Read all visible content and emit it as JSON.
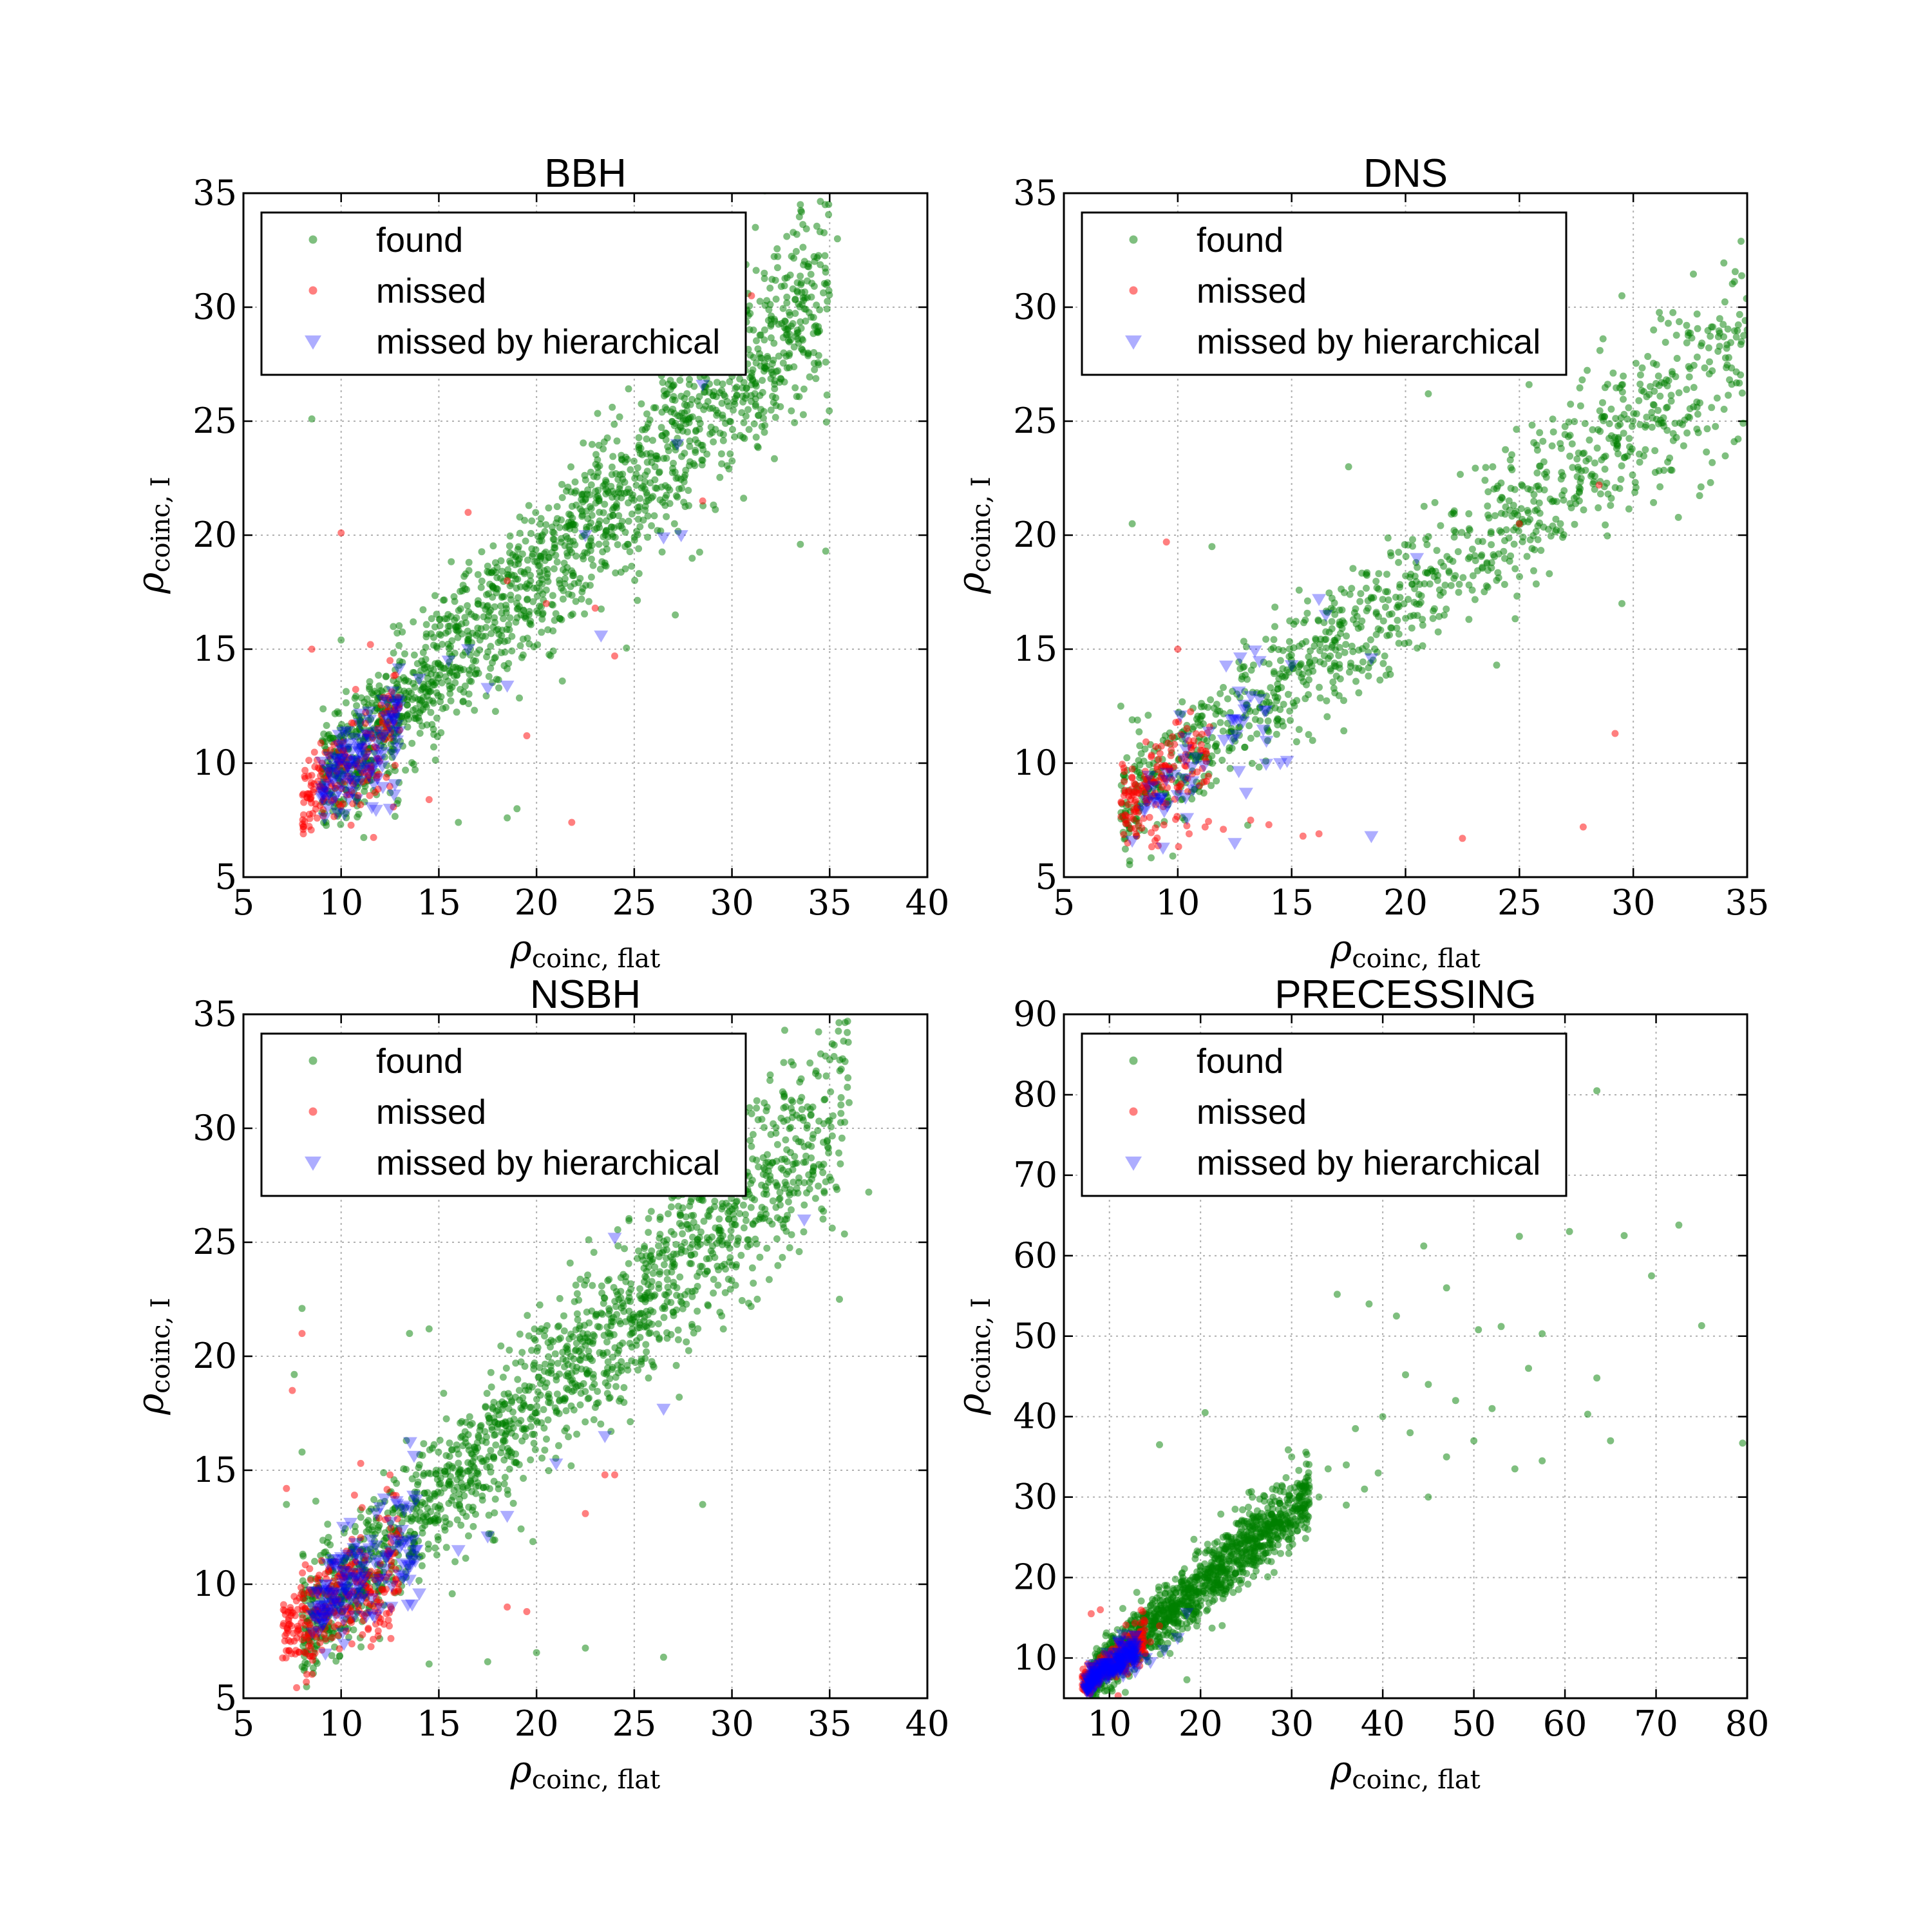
{
  "figure": {
    "legend": [
      "found",
      "missed",
      "missed by hierarchical"
    ],
    "colors": {
      "found": "#008000",
      "missed": "#ff0000",
      "hier": "#0000ff"
    }
  },
  "chart_data": [
    {
      "type": "scatter",
      "title": "BBH",
      "xlabel": "ρ",
      "xlabel_sub": "coinc, flat",
      "ylabel": "ρ",
      "ylabel_sub": "coinc, I",
      "xlim": [
        5,
        40
      ],
      "ylim": [
        5,
        35
      ],
      "xticks": [
        5,
        10,
        15,
        20,
        25,
        30,
        35,
        40
      ],
      "yticks": [
        5,
        10,
        15,
        20,
        25,
        30,
        35
      ],
      "grid": true,
      "legend_position": "upper-left",
      "series": [
        {
          "name": "found",
          "generator": {
            "xmin": 9,
            "xmax": 35,
            "slope": 0.83,
            "intercept": 1.6,
            "spread": 2.2,
            "count": 1700,
            "seed": 11
          },
          "extra_points": [
            [
              8.5,
              25.1
            ],
            [
              10,
              15.4
            ],
            [
              16,
              7.4
            ],
            [
              18.5,
              7.6
            ],
            [
              19,
              8
            ],
            [
              33.5,
              19.6
            ],
            [
              34.8,
              19.3
            ],
            [
              33.5,
              34.5
            ],
            [
              31.2,
              33.5
            ],
            [
              35.4,
              33
            ],
            [
              27.1,
              16.5
            ]
          ]
        },
        {
          "name": "missed",
          "generator": {
            "xmin": 8,
            "xmax": 13,
            "slope": 0.55,
            "intercept": 4,
            "spread": 1.4,
            "count": 180,
            "seed": 23
          },
          "extra_points": [
            [
              8.5,
              15
            ],
            [
              10,
              20.1
            ],
            [
              16.5,
              21
            ],
            [
              19.5,
              11.2
            ],
            [
              21.8,
              7.4
            ],
            [
              24,
              14.7
            ],
            [
              23,
              16.8
            ],
            [
              14.5,
              8.4
            ],
            [
              18.5,
              18
            ],
            [
              20.5,
              17
            ],
            [
              28.5,
              21.5
            ],
            [
              31,
              30.5
            ],
            [
              11.5,
              15.2
            ],
            [
              12.5,
              14.5
            ]
          ]
        },
        {
          "name": "missed by hierarchical",
          "generator": {
            "xmin": 9,
            "xmax": 13,
            "slope": 0.75,
            "intercept": 2.2,
            "spread": 1.3,
            "count": 120,
            "seed": 37
          },
          "extra_points": [
            [
              12.5,
              8
            ],
            [
              17.5,
              13.3
            ],
            [
              18.5,
              13.4
            ],
            [
              23.3,
              15.6
            ],
            [
              22.5,
              20
            ],
            [
              26.5,
              19.9
            ],
            [
              27.4,
              20
            ],
            [
              27.2,
              24
            ],
            [
              28.5,
              26.6
            ],
            [
              15.5,
              14.5
            ],
            [
              16.5,
              15
            ],
            [
              14,
              13.7
            ]
          ]
        }
      ]
    },
    {
      "type": "scatter",
      "title": "DNS",
      "xlabel": "ρ",
      "xlabel_sub": "coinc, flat",
      "ylabel": "ρ",
      "ylabel_sub": "coinc, I",
      "xlim": [
        5,
        35
      ],
      "ylim": [
        5,
        35
      ],
      "xticks": [
        5,
        10,
        15,
        20,
        25,
        30,
        35
      ],
      "yticks": [
        5,
        10,
        15,
        20,
        25,
        30,
        35
      ],
      "grid": true,
      "legend_position": "upper-left",
      "series": [
        {
          "name": "found",
          "generator": {
            "xmin": 7.5,
            "xmax": 35,
            "slope": 0.74,
            "intercept": 2.6,
            "spread": 2.0,
            "count": 1100,
            "seed": 41
          },
          "extra_points": [
            [
              8,
              20.5
            ],
            [
              11.5,
              19.5
            ],
            [
              17.5,
              23
            ],
            [
              21,
              26.2
            ],
            [
              29.5,
              17
            ],
            [
              35,
              29
            ],
            [
              29.5,
              30.5
            ],
            [
              24,
              14.3
            ],
            [
              26.8,
              20.5
            ],
            [
              7.5,
              12.5
            ],
            [
              8,
              11.9
            ]
          ]
        },
        {
          "name": "missed",
          "generator": {
            "xmin": 7.5,
            "xmax": 11.5,
            "slope": 0.55,
            "intercept": 4,
            "spread": 1.3,
            "count": 160,
            "seed": 53
          },
          "extra_points": [
            [
              9.5,
              19.7
            ],
            [
              10,
              15
            ],
            [
              27.8,
              7.2
            ],
            [
              29.2,
              11.3
            ],
            [
              22.5,
              6.7
            ],
            [
              15.5,
              6.8
            ],
            [
              16.2,
              6.9
            ],
            [
              14,
              7.3
            ],
            [
              13.2,
              7.5
            ],
            [
              11.2,
              7.2
            ],
            [
              12,
              7.1
            ],
            [
              7.8,
              6.5
            ],
            [
              8.2,
              6.8
            ],
            [
              9,
              6.6
            ],
            [
              10.5,
              6.9
            ],
            [
              28.5,
              22.2
            ],
            [
              25,
              20.5
            ]
          ]
        },
        {
          "name": "missed by hierarchical",
          "generator": {
            "xmin": 8.5,
            "xmax": 14,
            "slope": 0.8,
            "intercept": 1.5,
            "spread": 1.4,
            "count": 55,
            "seed": 67
          },
          "extra_points": [
            [
              8,
              6.6
            ],
            [
              12.5,
              6.5
            ],
            [
              18.5,
              6.8
            ],
            [
              16.2,
              17.2
            ],
            [
              16.5,
              16.5
            ],
            [
              18.5,
              14.6
            ],
            [
              20.5,
              19
            ],
            [
              15,
              14.3
            ],
            [
              13,
              8.7
            ],
            [
              14.5,
              10
            ],
            [
              14.8,
              10.1
            ]
          ]
        }
      ]
    },
    {
      "type": "scatter",
      "title": "NSBH",
      "xlabel": "ρ",
      "xlabel_sub": "coinc, flat",
      "ylabel": "ρ",
      "ylabel_sub": "coinc, I",
      "xlim": [
        5,
        40
      ],
      "ylim": [
        5,
        35
      ],
      "xticks": [
        5,
        10,
        15,
        20,
        25,
        30,
        35,
        40
      ],
      "yticks": [
        5,
        10,
        15,
        20,
        25,
        30,
        35
      ],
      "grid": true,
      "legend_position": "upper-left",
      "series": [
        {
          "name": "found",
          "generator": {
            "xmin": 8,
            "xmax": 36,
            "slope": 0.82,
            "intercept": 1.6,
            "spread": 2.2,
            "count": 1700,
            "seed": 71
          },
          "extra_points": [
            [
              8,
              22.1
            ],
            [
              7.6,
              19.2
            ],
            [
              8,
              15.8
            ],
            [
              7.2,
              13.5
            ],
            [
              14.5,
              21.2
            ],
            [
              13.5,
              21
            ],
            [
              20,
              7
            ],
            [
              22.5,
              7.2
            ],
            [
              26.5,
              6.8
            ],
            [
              28.5,
              13.5
            ],
            [
              17.5,
              6.6
            ],
            [
              14.5,
              6.5
            ],
            [
              37,
              27.2
            ],
            [
              35.9,
              34.2
            ],
            [
              34.7,
              30.2
            ],
            [
              32.7,
              34.3
            ],
            [
              35.5,
              22.5
            ]
          ]
        },
        {
          "name": "missed",
          "generator": {
            "xmin": 7,
            "xmax": 13,
            "slope": 0.5,
            "intercept": 4.3,
            "spread": 1.6,
            "count": 300,
            "seed": 83
          },
          "extra_points": [
            [
              8,
              21
            ],
            [
              7.5,
              18.5
            ],
            [
              7.2,
              14.2
            ],
            [
              18.5,
              9
            ],
            [
              19.5,
              8.8
            ],
            [
              22.5,
              13.1
            ],
            [
              24,
              14.8
            ],
            [
              23.5,
              14.8
            ],
            [
              12.5,
              14.8
            ],
            [
              11,
              15.3
            ]
          ]
        },
        {
          "name": "missed by hierarchical",
          "generator": {
            "xmin": 8.5,
            "xmax": 14,
            "slope": 0.7,
            "intercept": 2.5,
            "spread": 1.5,
            "count": 150,
            "seed": 97
          },
          "extra_points": [
            [
              17.5,
              12.1
            ],
            [
              18.5,
              13
            ],
            [
              21,
              15.3
            ],
            [
              23.5,
              16.5
            ],
            [
              24,
              25.2
            ],
            [
              26.5,
              17.7
            ],
            [
              33.7,
              26
            ],
            [
              13.5,
              10.2
            ],
            [
              14,
              9.6
            ],
            [
              16,
              11.5
            ]
          ]
        }
      ]
    },
    {
      "type": "scatter",
      "title": "PRECESSING",
      "xlabel": "ρ",
      "xlabel_sub": "coinc, flat",
      "ylabel": "ρ",
      "ylabel_sub": "coinc, I",
      "xlim": [
        5,
        80
      ],
      "ylim": [
        5,
        90
      ],
      "xticks": [
        10,
        20,
        30,
        40,
        50,
        60,
        70,
        80
      ],
      "yticks": [
        10,
        20,
        30,
        40,
        50,
        60,
        70,
        80,
        90
      ],
      "grid": true,
      "legend_position": "upper-left",
      "series": [
        {
          "name": "found",
          "generator": {
            "xmin": 8,
            "xmax": 32,
            "slope": 0.95,
            "intercept": 0,
            "spread": 2.5,
            "count": 1300,
            "seed": 101
          },
          "extra_points": [
            [
              63.5,
              80.5
            ],
            [
              72.5,
              63.8
            ],
            [
              60.5,
              63
            ],
            [
              66.5,
              62.5
            ],
            [
              69.5,
              57.5
            ],
            [
              75,
              51.3
            ],
            [
              79.5,
              36.7
            ],
            [
              65,
              37
            ],
            [
              63.5,
              44.8
            ],
            [
              62.5,
              40.3
            ],
            [
              44.5,
              61.2
            ],
            [
              38.5,
              54
            ],
            [
              35,
              55.2
            ],
            [
              41.5,
              52.5
            ],
            [
              47,
              56
            ],
            [
              55,
              62.4
            ],
            [
              57.5,
              50.3
            ],
            [
              53,
              51.2
            ],
            [
              50.5,
              50.8
            ],
            [
              42.5,
              45.2
            ],
            [
              45,
              44
            ],
            [
              48,
              42
            ],
            [
              43,
              38
            ],
            [
              52,
              41
            ],
            [
              47,
              35
            ],
            [
              40,
              40
            ],
            [
              37,
              38.5
            ],
            [
              36,
              34
            ],
            [
              39.5,
              33
            ],
            [
              54.5,
              33.5
            ],
            [
              56,
              46
            ],
            [
              45,
              30
            ],
            [
              50,
              37
            ],
            [
              57.5,
              34.5
            ],
            [
              15.5,
              36.5
            ],
            [
              20.5,
              40.5
            ],
            [
              18.5,
              7.3
            ],
            [
              33,
              30
            ],
            [
              34,
              33.5
            ],
            [
              31,
              27.5
            ],
            [
              29,
              26
            ],
            [
              27,
              29.5
            ],
            [
              36,
              29
            ],
            [
              38,
              31
            ],
            [
              30,
              35
            ]
          ]
        },
        {
          "name": "missed",
          "generator": {
            "xmin": 7,
            "xmax": 14,
            "slope": 0.8,
            "intercept": 1.2,
            "spread": 1.4,
            "count": 260,
            "seed": 113
          },
          "extra_points": [
            [
              8,
              15.5
            ],
            [
              9,
              16
            ],
            [
              12,
              8
            ],
            [
              14.5,
              12
            ],
            [
              15.5,
              14
            ],
            [
              7.5,
              8
            ]
          ]
        },
        {
          "name": "missed by hierarchical",
          "generator": {
            "xmin": 7.5,
            "xmax": 13,
            "slope": 0.8,
            "intercept": 1.0,
            "spread": 1.2,
            "count": 180,
            "seed": 127
          },
          "extra_points": [
            [
              14,
              10
            ],
            [
              16,
              11
            ],
            [
              17.5,
              12.5
            ],
            [
              18.5,
              15.6
            ],
            [
              14.5,
              9.5
            ],
            [
              11.5,
              7.8
            ]
          ]
        }
      ]
    }
  ]
}
